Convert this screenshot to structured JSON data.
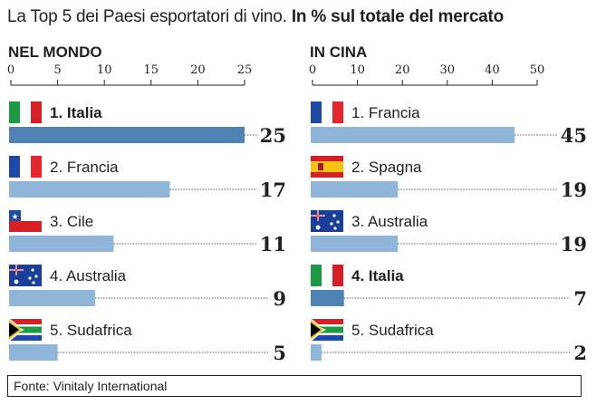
{
  "title": {
    "main": "La Top 5 dei Paesi esportatori di vino.",
    "bold": "In % sul totale del mercato"
  },
  "source": "Fonte: Vinitaly International",
  "colors": {
    "bar": "#8fb6d9",
    "highlight": "#4e82b3",
    "axis": "#231f20",
    "leader": "#555555"
  },
  "chart_data": [
    {
      "type": "bar",
      "title": "NEL MONDO",
      "xlim": [
        0,
        25
      ],
      "ticks": [
        0,
        5,
        10,
        15,
        20,
        25
      ],
      "categories": [
        "1. Italia",
        "2. Francia",
        "3. Cile",
        "4. Australia",
        "5. Sudafrica"
      ],
      "flags": [
        "italy-flag-icon",
        "france-flag-icon",
        "chile-flag-icon",
        "australia-flag-icon",
        "south-africa-flag-icon"
      ],
      "values": [
        25,
        17,
        11,
        9,
        5
      ],
      "highlight": "1. Italia"
    },
    {
      "type": "bar",
      "title": "IN CINA",
      "xlim": [
        0,
        50
      ],
      "ticks": [
        0,
        10,
        20,
        30,
        40,
        50
      ],
      "categories": [
        "1. Francia",
        "2. Spagna",
        "3. Australia",
        "4. Italia",
        "5. Sudafrica"
      ],
      "flags": [
        "france-flag-icon",
        "spain-flag-icon",
        "australia-flag-icon",
        "italy-flag-icon",
        "south-africa-flag-icon"
      ],
      "values": [
        45,
        19,
        19,
        7,
        2
      ],
      "highlight": "4. Italia"
    }
  ]
}
